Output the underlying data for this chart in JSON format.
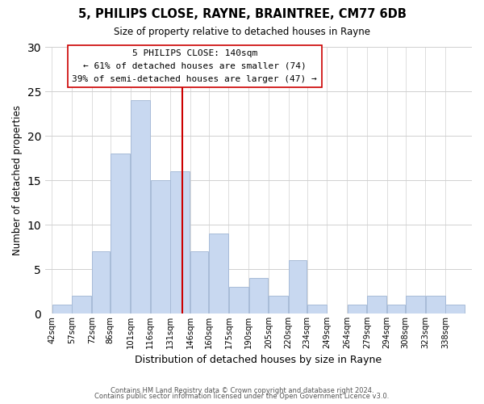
{
  "title": "5, PHILIPS CLOSE, RAYNE, BRAINTREE, CM77 6DB",
  "subtitle": "Size of property relative to detached houses in Rayne",
  "xlabel": "Distribution of detached houses by size in Rayne",
  "ylabel": "Number of detached properties",
  "bar_color": "#c8d8f0",
  "bar_edge_color": "#a8bcd8",
  "bins": [
    "42sqm",
    "57sqm",
    "72sqm",
    "86sqm",
    "101sqm",
    "116sqm",
    "131sqm",
    "146sqm",
    "160sqm",
    "175sqm",
    "190sqm",
    "205sqm",
    "220sqm",
    "234sqm",
    "249sqm",
    "264sqm",
    "279sqm",
    "294sqm",
    "308sqm",
    "323sqm",
    "338sqm"
  ],
  "bin_edges": [
    42,
    57,
    72,
    86,
    101,
    116,
    131,
    146,
    160,
    175,
    190,
    205,
    220,
    234,
    249,
    264,
    279,
    294,
    308,
    323,
    338,
    353
  ],
  "counts": [
    1,
    2,
    7,
    18,
    24,
    15,
    16,
    7,
    9,
    3,
    4,
    2,
    6,
    1,
    0,
    1,
    2,
    1,
    2,
    2,
    1
  ],
  "vline_x": 140,
  "vline_color": "#cc0000",
  "annotation_title": "5 PHILIPS CLOSE: 140sqm",
  "annotation_line1": "← 61% of detached houses are smaller (74)",
  "annotation_line2": "39% of semi-detached houses are larger (47) →",
  "annotation_box_color": "#ffffff",
  "annotation_box_edge": "#888888",
  "ylim": [
    0,
    30
  ],
  "yticks": [
    0,
    5,
    10,
    15,
    20,
    25,
    30
  ],
  "footer1": "Contains HM Land Registry data © Crown copyright and database right 2024.",
  "footer2": "Contains public sector information licensed under the Open Government Licence v3.0.",
  "background_color": "#ffffff",
  "grid_color": "#d0d0d0"
}
